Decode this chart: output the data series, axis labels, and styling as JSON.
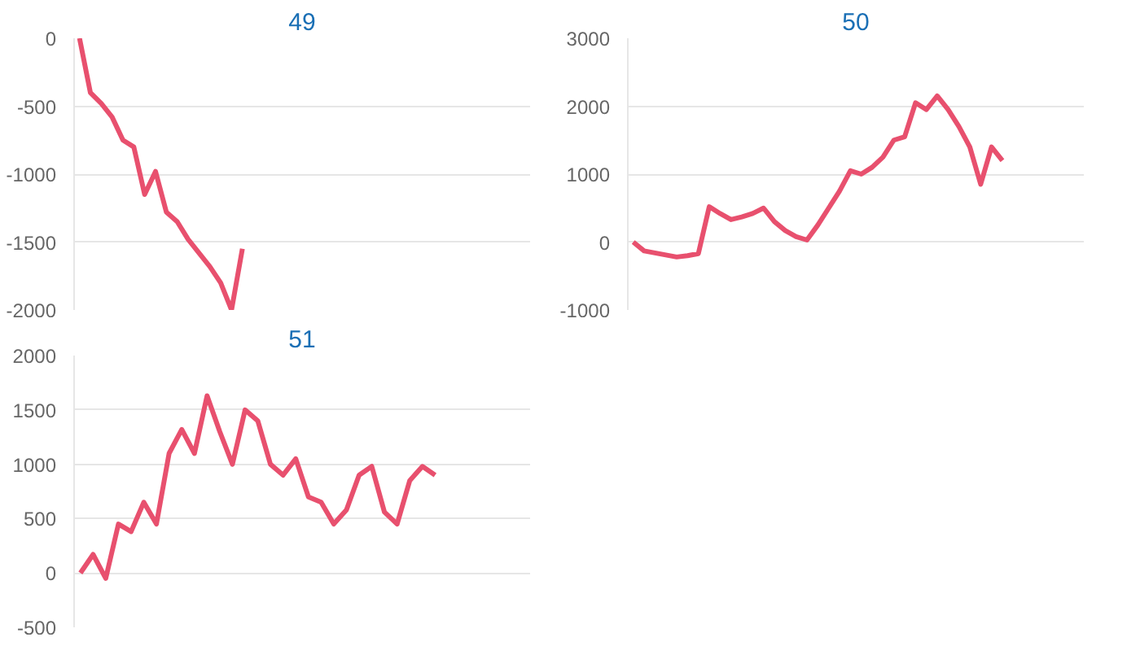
{
  "chart_data": [
    {
      "type": "line",
      "title": "49",
      "categories": [
        null,
        null,
        null,
        null,
        null,
        null,
        null,
        null,
        null,
        null,
        null,
        null,
        null,
        null,
        null,
        null,
        null,
        null,
        null,
        null,
        null,
        null,
        null,
        null,
        null,
        null,
        null,
        null,
        null,
        null,
        null,
        null,
        null,
        null,
        null,
        null,
        null,
        null,
        null,
        null,
        null,
        null
      ],
      "series": [
        {
          "color": "#e8506e",
          "values": [
            0,
            -400,
            -480,
            -580,
            -750,
            -800,
            -1150,
            -980,
            -1280,
            -1350,
            -1480,
            -1580,
            -1680,
            -1800,
            -2000,
            -1550,
            null,
            null,
            null,
            null,
            null,
            null,
            null,
            null,
            null,
            null,
            null,
            null,
            null,
            null,
            null,
            null,
            null,
            null,
            null,
            null,
            null,
            null,
            null,
            null,
            null,
            null
          ]
        }
      ],
      "ylim": [
        -2000,
        0
      ],
      "yticks": [
        -2000,
        -1500,
        -1000,
        -500,
        0
      ],
      "grid": "y",
      "tick_labels": "y"
    },
    {
      "type": "line",
      "title": "50",
      "categories": [
        null,
        null,
        null,
        null,
        null,
        null,
        null,
        null,
        null,
        null,
        null,
        null,
        null,
        null,
        null,
        null,
        null,
        null,
        null,
        null,
        null,
        null,
        null,
        null,
        null,
        null,
        null,
        null,
        null,
        null,
        null,
        null,
        null,
        null,
        null,
        null,
        null,
        null,
        null,
        null,
        null,
        null
      ],
      "series": [
        {
          "color": "#e8506e",
          "values": [
            0,
            -130,
            -160,
            -190,
            -220,
            -200,
            -170,
            520,
            420,
            330,
            370,
            420,
            500,
            300,
            170,
            80,
            30,
            250,
            500,
            750,
            1050,
            1000,
            1100,
            1250,
            1500,
            1550,
            2050,
            1950,
            2150,
            1950,
            1700,
            1400,
            850,
            1400,
            1200,
            null,
            null,
            null,
            null,
            null,
            null,
            null
          ]
        }
      ],
      "ylim": [
        -1000,
        3000
      ],
      "yticks": [
        -1000,
        0,
        1000,
        2000,
        3000
      ],
      "grid": "y",
      "tick_labels": "y"
    },
    {
      "type": "line",
      "title": "51",
      "categories": [
        null,
        null,
        null,
        null,
        null,
        null,
        null,
        null,
        null,
        null,
        null,
        null,
        null,
        null,
        null,
        null,
        null,
        null,
        null,
        null,
        null,
        null,
        null,
        null,
        null,
        null,
        null,
        null,
        null,
        null,
        null,
        null,
        null,
        null,
        null,
        null
      ],
      "series": [
        {
          "color": "#e8506e",
          "values": [
            0,
            170,
            -50,
            450,
            380,
            650,
            450,
            1100,
            1320,
            1100,
            1630,
            1300,
            1000,
            1500,
            1400,
            1000,
            900,
            1050,
            700,
            650,
            450,
            580,
            900,
            980,
            560,
            450,
            850,
            980,
            900,
            null,
            null,
            null,
            null,
            null,
            null,
            null
          ]
        }
      ],
      "ylim": [
        -500,
        2000
      ],
      "yticks": [
        -500,
        0,
        500,
        1000,
        1500,
        2000
      ],
      "grid": "y",
      "tick_labels": "y"
    }
  ]
}
